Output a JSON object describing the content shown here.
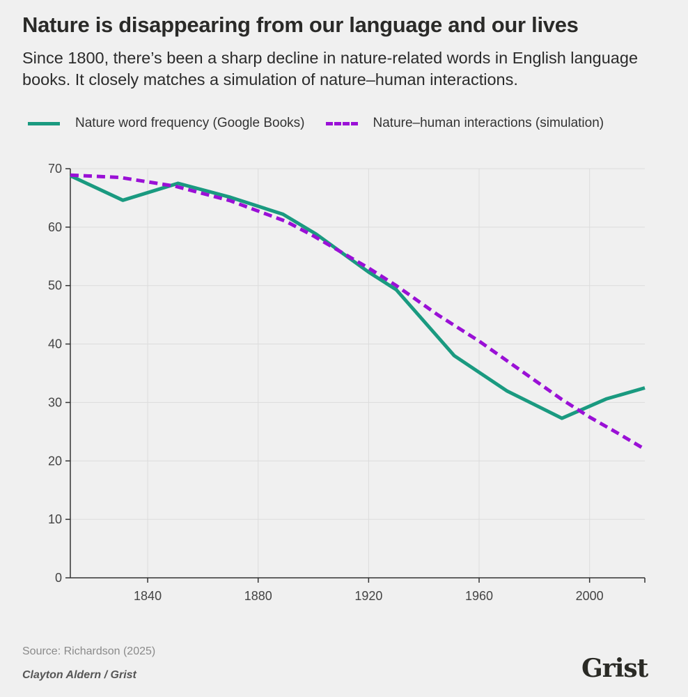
{
  "title": "Nature is disappearing from our language and our lives",
  "subtitle": "Since 1800, there’s been a sharp decline in nature-related words in English language books. It closely matches a simulation of nature–human interactions.",
  "source": "Source: Richardson (2025)",
  "credit": "Clayton Aldern / Grist",
  "logo": "Grist",
  "chart_data": {
    "type": "line",
    "title": "Nature is disappearing from our language and our lives",
    "xlim": [
      1812,
      2020
    ],
    "ylim": [
      0,
      70
    ],
    "xticks": [
      1840,
      1880,
      1920,
      1960,
      2000
    ],
    "yticks": [
      0,
      10,
      20,
      30,
      40,
      50,
      60,
      70
    ],
    "grid": true,
    "legend_position": "top",
    "series": [
      {
        "name": "Nature word frequency (Google Books)",
        "color": "#1a9a80",
        "style": "solid",
        "x": [
          1812,
          1831,
          1851,
          1870,
          1889,
          1901,
          1920,
          1930,
          1951,
          1970,
          1990,
          2006,
          2020
        ],
        "y": [
          68.8,
          64.6,
          67.5,
          65.1,
          62.2,
          58.8,
          52.3,
          49.3,
          38.0,
          32.0,
          27.3,
          30.6,
          32.5
        ]
      },
      {
        "name": "Nature–human interactions (simulation)",
        "color": "#9a10d6",
        "style": "dashed",
        "x": [
          1812,
          1830,
          1850,
          1870,
          1890,
          1900,
          1920,
          1930,
          1945,
          1960,
          1975,
          1990,
          2000,
          2010,
          2020
        ],
        "y": [
          68.9,
          68.5,
          67.0,
          64.5,
          61.0,
          58.5,
          53.0,
          50.0,
          45.0,
          40.5,
          35.5,
          30.5,
          27.5,
          24.8,
          22.0
        ]
      }
    ]
  }
}
